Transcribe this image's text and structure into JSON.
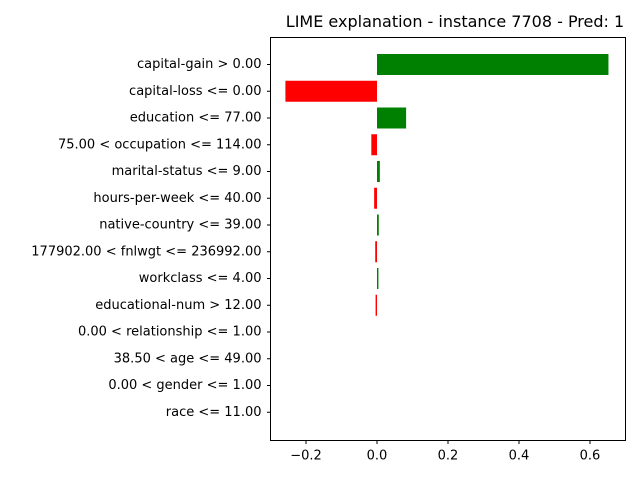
{
  "chart_data": {
    "type": "bar",
    "orientation": "horizontal",
    "title": "LIME explanation - instance 7708 - Pred: 1",
    "xlabel": "",
    "ylabel": "",
    "xlim": [
      -0.3,
      0.7
    ],
    "xticks": [
      -0.2,
      0.0,
      0.2,
      0.4,
      0.6
    ],
    "xtick_labels": [
      "−0.2",
      "0.0",
      "0.2",
      "0.4",
      "0.6"
    ],
    "grid": false,
    "positive_color": "#008000",
    "negative_color": "#ff0000",
    "categories": [
      "capital-gain > 0.00",
      "capital-loss <= 0.00",
      "education <= 77.00",
      "75.00 < occupation <= 114.00",
      "marital-status <= 9.00",
      "hours-per-week <= 40.00",
      "native-country <= 39.00",
      "177902.00 < fnlwgt <= 236992.00",
      "workclass <= 4.00",
      "educational-num > 12.00",
      "0.00 < relationship <= 1.00",
      "38.50 < age <= 49.00",
      "0.00 < gender <= 1.00",
      "race <= 11.00"
    ],
    "values": [
      0.652,
      -0.258,
      0.082,
      -0.016,
      0.008,
      -0.008,
      0.005,
      -0.005,
      0.004,
      -0.004,
      0,
      0,
      0,
      0
    ]
  }
}
